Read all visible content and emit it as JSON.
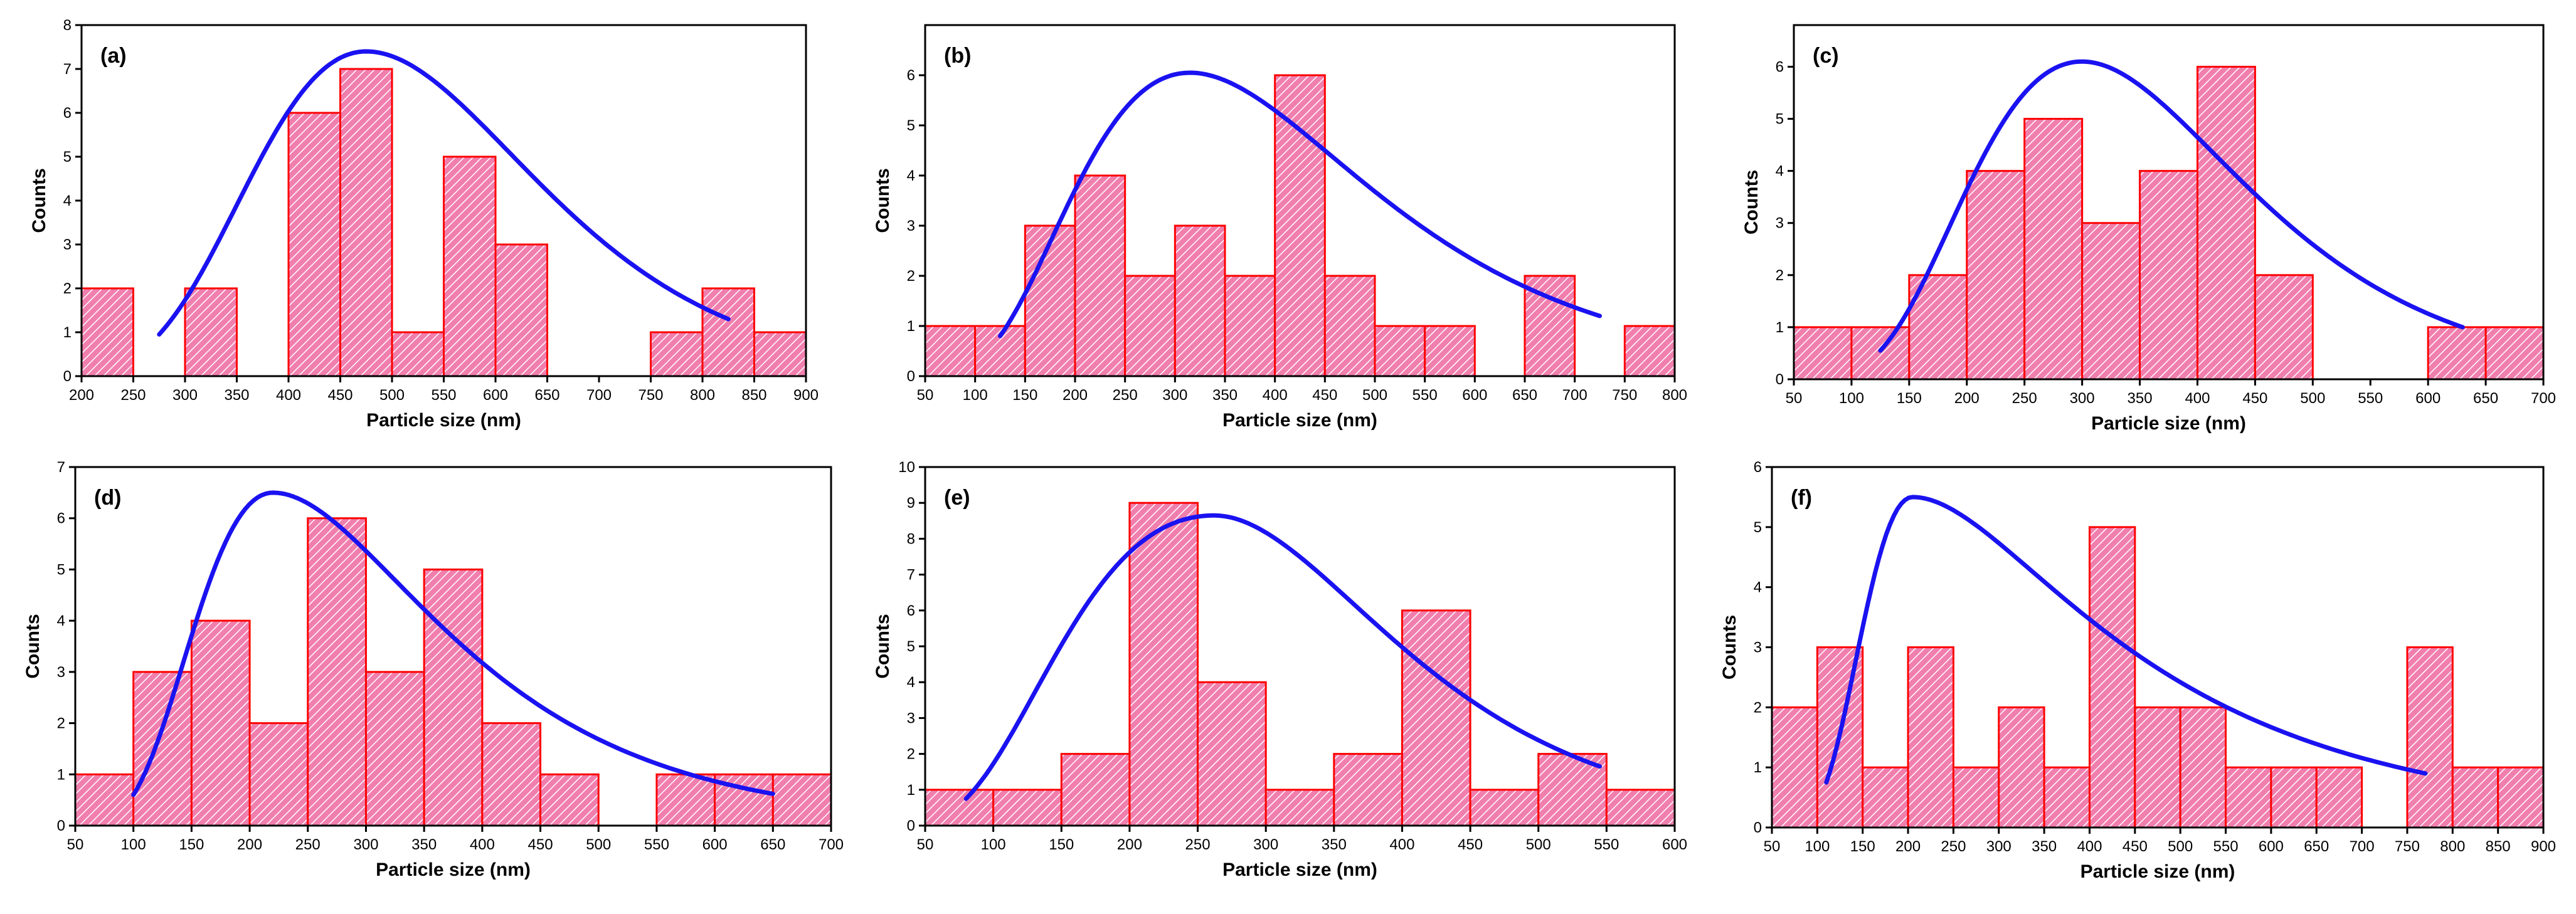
{
  "colors": {
    "bar_fill": "#f07fae",
    "bar_edge": "#ff0000",
    "hatch": "#ffffff",
    "curve": "#1a12f0",
    "axis": "#000000"
  },
  "chart_data": [
    {
      "type": "bar",
      "panel": "(a)",
      "xlabel": "Particle size (nm)",
      "ylabel": "Counts",
      "xlim": [
        200,
        900
      ],
      "ylim": [
        0,
        8
      ],
      "bin_width": 50,
      "xticks": [
        200,
        250,
        300,
        350,
        400,
        450,
        500,
        550,
        600,
        650,
        700,
        750,
        800,
        850,
        900
      ],
      "yticks": [
        0,
        1,
        2,
        3,
        4,
        5,
        6,
        7,
        8
      ],
      "bins": [
        [
          200,
          2
        ],
        [
          300,
          2
        ],
        [
          400,
          6
        ],
        [
          450,
          7
        ],
        [
          500,
          1
        ],
        [
          550,
          5
        ],
        [
          600,
          3
        ],
        [
          750,
          1
        ],
        [
          800,
          2
        ],
        [
          850,
          1
        ]
      ],
      "fit": {
        "type": "lognormal",
        "peak_x": 475,
        "peak_y": 7.4,
        "x_start": 275,
        "x_end": 825,
        "y_start": 0.95,
        "y_end": 1.3
      }
    },
    {
      "type": "bar",
      "panel": "(b)",
      "xlabel": "Particle size (nm)",
      "ylabel": "Counts",
      "xlim": [
        50,
        800
      ],
      "ylim": [
        0,
        7
      ],
      "bin_width": 50,
      "xticks": [
        50,
        100,
        150,
        200,
        250,
        300,
        350,
        400,
        450,
        500,
        550,
        600,
        650,
        700,
        750,
        800
      ],
      "yticks": [
        0,
        1,
        2,
        3,
        4,
        5,
        6
      ],
      "bins": [
        [
          50,
          1
        ],
        [
          100,
          1
        ],
        [
          150,
          3
        ],
        [
          200,
          4
        ],
        [
          250,
          2
        ],
        [
          300,
          3
        ],
        [
          350,
          2
        ],
        [
          400,
          6
        ],
        [
          450,
          2
        ],
        [
          500,
          1
        ],
        [
          550,
          1
        ],
        [
          650,
          2
        ],
        [
          750,
          1
        ]
      ],
      "fit": {
        "type": "lognormal",
        "peak_x": 315,
        "peak_y": 6.05,
        "x_start": 125,
        "x_end": 725,
        "y_start": 0.8,
        "y_end": 1.2
      }
    },
    {
      "type": "bar",
      "panel": "(c)",
      "xlabel": "Particle size (nm)",
      "ylabel": "Counts",
      "xlim": [
        50,
        700
      ],
      "ylim": [
        0,
        6.8
      ],
      "bin_width": 50,
      "xticks": [
        50,
        100,
        150,
        200,
        250,
        300,
        350,
        400,
        450,
        500,
        550,
        600,
        650,
        700
      ],
      "yticks": [
        0,
        1,
        2,
        3,
        4,
        5,
        6
      ],
      "bins": [
        [
          50,
          1
        ],
        [
          100,
          1
        ],
        [
          150,
          2
        ],
        [
          200,
          4
        ],
        [
          250,
          5
        ],
        [
          300,
          3
        ],
        [
          350,
          4
        ],
        [
          400,
          6
        ],
        [
          450,
          2
        ],
        [
          600,
          1
        ],
        [
          650,
          1
        ]
      ],
      "fit": {
        "type": "lognormal",
        "peak_x": 300,
        "peak_y": 6.1,
        "x_start": 125,
        "x_end": 630,
        "y_start": 0.55,
        "y_end": 1.0
      }
    },
    {
      "type": "bar",
      "panel": "(d)",
      "xlabel": "Particle size (nm)",
      "ylabel": "Counts",
      "xlim": [
        50,
        700
      ],
      "ylim": [
        0,
        7
      ],
      "bin_width": 50,
      "xticks": [
        50,
        100,
        150,
        200,
        250,
        300,
        350,
        400,
        450,
        500,
        550,
        600,
        650,
        700
      ],
      "yticks": [
        0,
        1,
        2,
        3,
        4,
        5,
        6,
        7
      ],
      "bins": [
        [
          50,
          1
        ],
        [
          100,
          3
        ],
        [
          150,
          4
        ],
        [
          200,
          2
        ],
        [
          250,
          6
        ],
        [
          300,
          3
        ],
        [
          350,
          5
        ],
        [
          400,
          2
        ],
        [
          450,
          1
        ],
        [
          550,
          1
        ],
        [
          600,
          1
        ],
        [
          650,
          1
        ]
      ],
      "fit": {
        "type": "lognormal",
        "peak_x": 220,
        "peak_y": 6.5,
        "x_start": 100,
        "x_end": 650,
        "y_start": 0.6,
        "y_end": 0.62
      }
    },
    {
      "type": "bar",
      "panel": "(e)",
      "xlabel": "Particle size (nm)",
      "ylabel": "Counts",
      "xlim": [
        50,
        600
      ],
      "ylim": [
        0,
        10
      ],
      "bin_width": 50,
      "xticks": [
        50,
        100,
        150,
        200,
        250,
        300,
        350,
        400,
        450,
        500,
        550,
        600
      ],
      "yticks": [
        0,
        1,
        2,
        3,
        4,
        5,
        6,
        7,
        8,
        9,
        10
      ],
      "bins": [
        [
          50,
          1
        ],
        [
          100,
          1
        ],
        [
          150,
          2
        ],
        [
          200,
          9
        ],
        [
          250,
          4
        ],
        [
          300,
          1
        ],
        [
          350,
          2
        ],
        [
          400,
          6
        ],
        [
          450,
          1
        ],
        [
          500,
          2
        ],
        [
          550,
          1
        ]
      ],
      "fit": {
        "type": "lognormal",
        "peak_x": 262,
        "peak_y": 8.65,
        "x_start": 80,
        "x_end": 545,
        "y_start": 0.75,
        "y_end": 1.65
      }
    },
    {
      "type": "bar",
      "panel": "(f)",
      "xlabel": "Particle size (nm)",
      "ylabel": "Counts",
      "xlim": [
        50,
        900
      ],
      "ylim": [
        0,
        6
      ],
      "bin_width": 50,
      "xticks": [
        50,
        100,
        150,
        200,
        250,
        300,
        350,
        400,
        450,
        500,
        550,
        600,
        650,
        700,
        750,
        800,
        850,
        900
      ],
      "yticks": [
        0,
        1,
        2,
        3,
        4,
        5,
        6
      ],
      "bins": [
        [
          50,
          2
        ],
        [
          100,
          3
        ],
        [
          150,
          1
        ],
        [
          200,
          3
        ],
        [
          250,
          1
        ],
        [
          300,
          2
        ],
        [
          350,
          1
        ],
        [
          400,
          5
        ],
        [
          450,
          2
        ],
        [
          500,
          2
        ],
        [
          550,
          1
        ],
        [
          600,
          1
        ],
        [
          650,
          1
        ],
        [
          750,
          3
        ],
        [
          800,
          1
        ],
        [
          850,
          1
        ]
      ],
      "fit": {
        "type": "lognormal",
        "peak_x": 205,
        "peak_y": 5.5,
        "x_start": 110,
        "x_end": 770,
        "y_start": 0.75,
        "y_end": 0.9
      }
    }
  ]
}
